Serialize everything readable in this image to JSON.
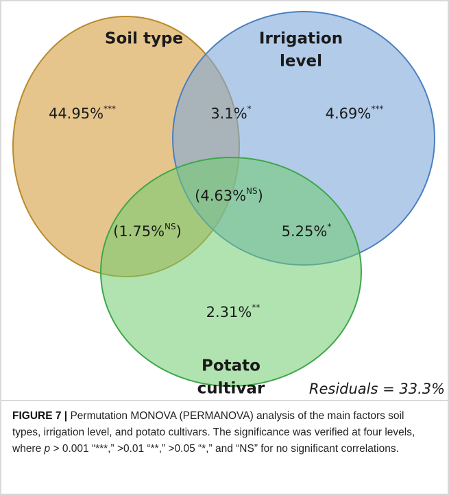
{
  "sets": [
    {
      "label_lines": [
        "Soil type"
      ]
    },
    {
      "label_lines": [
        "Irrigation",
        "level"
      ]
    },
    {
      "label_lines": [
        "Potato",
        "cultivar"
      ]
    }
  ],
  "regions": [
    {
      "text": "44.95%",
      "sup": "***"
    },
    {
      "text": "3.1%",
      "sup": "*"
    },
    {
      "text": "4.69%",
      "sup": "***"
    },
    {
      "text": "(4.63%",
      "sup": "NS",
      "after": ")"
    },
    {
      "text": "(1.75%",
      "sup": "NS",
      "after": ")"
    },
    {
      "text": "5.25%",
      "sup": "*"
    },
    {
      "text": "2.31%",
      "sup": "**"
    }
  ],
  "residuals": "Residuals = 33.3%",
  "caption": {
    "label": "FIGURE 7 |",
    "text_before": " Permutation MONOVA (PERMANOVA) analysis of the main factors soil types, irrigation level, and potato cultivars. The significance was verified at four levels, where ",
    "italic": "p",
    "text_after": " > 0.001 “***,” >0.01 “**,” >0.05 “*,” and “NS” for no significant correlations."
  }
}
